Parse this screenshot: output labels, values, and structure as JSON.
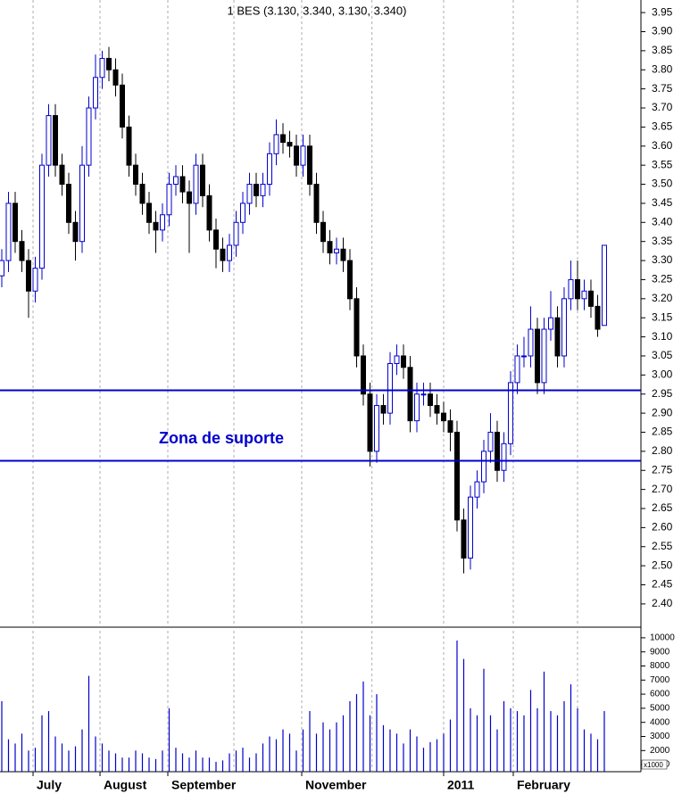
{
  "chart_data": [
    {
      "type": "candlestick",
      "title": "1 BES (3.130, 3.340, 3.130, 3.340)",
      "annotation": "Zona de suporte",
      "up_color": "#0000cc",
      "down_color": "#000000",
      "hlines": [
        2.96,
        2.775
      ],
      "hline_color": "#0000cc",
      "xlim": [
        -0.267,
        95.47
      ],
      "xgrid": [
        4.67,
        14.67,
        24.8,
        34.67,
        44.8,
        55.3,
        66,
        76.4,
        86
      ],
      "ylim": [
        2.346,
        3.983
      ],
      "yticks": [
        {
          "value": 2.4,
          "label": "2.40"
        },
        {
          "value": 2.45,
          "label": "2.45"
        },
        {
          "value": 2.5,
          "label": "2.50"
        },
        {
          "value": 2.55,
          "label": "2.55"
        },
        {
          "value": 2.6,
          "label": "2.60"
        },
        {
          "value": 2.65,
          "label": "2.65"
        },
        {
          "value": 2.7,
          "label": "2.70"
        },
        {
          "value": 2.75,
          "label": "2.75"
        },
        {
          "value": 2.8,
          "label": "2.80"
        },
        {
          "value": 2.85,
          "label": "2.85"
        },
        {
          "value": 2.9,
          "label": "2.90"
        },
        {
          "value": 2.95,
          "label": "2.95"
        },
        {
          "value": 3.0,
          "label": "3.00"
        },
        {
          "value": 3.05,
          "label": "3.05"
        },
        {
          "value": 3.1,
          "label": "3.10"
        },
        {
          "value": 3.15,
          "label": "3.15"
        },
        {
          "value": 3.2,
          "label": "3.20"
        },
        {
          "value": 3.25,
          "label": "3.25"
        },
        {
          "value": 3.3,
          "label": "3.30"
        },
        {
          "value": 3.35,
          "label": "3.35"
        },
        {
          "value": 3.4,
          "label": "3.40"
        },
        {
          "value": 3.45,
          "label": "3.45"
        },
        {
          "value": 3.5,
          "label": "3.50"
        },
        {
          "value": 3.55,
          "label": "3.55"
        },
        {
          "value": 3.6,
          "label": "3.60"
        },
        {
          "value": 3.65,
          "label": "3.65"
        },
        {
          "value": 3.7,
          "label": "3.70"
        },
        {
          "value": 3.75,
          "label": "3.75"
        },
        {
          "value": 3.8,
          "label": "3.80"
        },
        {
          "value": 3.85,
          "label": "3.85"
        },
        {
          "value": 3.9,
          "label": "3.90"
        },
        {
          "value": 3.95,
          "label": "3.95"
        }
      ],
      "open": [
        3.26,
        3.3,
        3.45,
        3.35,
        3.3,
        3.22,
        3.28,
        3.55,
        3.68,
        3.55,
        3.5,
        3.4,
        3.35,
        3.55,
        3.7,
        3.78,
        3.83,
        3.8,
        3.76,
        3.65,
        3.55,
        3.5,
        3.45,
        3.4,
        3.38,
        3.42,
        3.5,
        3.52,
        3.48,
        3.45,
        3.55,
        3.47,
        3.38,
        3.33,
        3.3,
        3.34,
        3.4,
        3.45,
        3.5,
        3.47,
        3.5,
        3.58,
        3.63,
        3.61,
        3.6,
        3.55,
        3.6,
        3.5,
        3.4,
        3.35,
        3.32,
        3.33,
        3.3,
        3.2,
        3.05,
        2.95,
        2.8,
        2.92,
        2.9,
        3.03,
        3.05,
        3.02,
        2.88,
        2.95,
        2.95,
        2.92,
        2.9,
        2.88,
        2.85,
        2.62,
        2.52,
        2.68,
        2.72,
        2.8,
        2.85,
        2.75,
        2.82,
        2.98,
        3.05,
        3.05,
        3.12,
        2.98,
        3.12,
        3.15,
        3.05,
        3.2,
        3.25,
        3.2,
        3.22,
        3.18,
        3.13
      ],
      "high": [
        3.33,
        3.48,
        3.48,
        3.38,
        3.33,
        3.31,
        3.58,
        3.71,
        3.71,
        3.58,
        3.53,
        3.43,
        3.6,
        3.73,
        3.84,
        3.85,
        3.86,
        3.83,
        3.79,
        3.68,
        3.58,
        3.53,
        3.48,
        3.43,
        3.45,
        3.53,
        3.55,
        3.55,
        3.51,
        3.58,
        3.58,
        3.5,
        3.41,
        3.36,
        3.37,
        3.43,
        3.48,
        3.53,
        3.53,
        3.53,
        3.61,
        3.67,
        3.66,
        3.64,
        3.63,
        3.63,
        3.63,
        3.53,
        3.43,
        3.38,
        3.36,
        3.36,
        3.33,
        3.23,
        3.08,
        2.98,
        2.95,
        2.95,
        3.06,
        3.08,
        3.08,
        3.05,
        2.98,
        2.98,
        2.98,
        2.95,
        2.93,
        2.91,
        2.88,
        2.65,
        2.71,
        2.75,
        2.83,
        2.9,
        2.88,
        2.85,
        3.01,
        3.08,
        3.1,
        3.18,
        3.15,
        3.15,
        3.22,
        3.18,
        3.23,
        3.3,
        3.3,
        3.25,
        3.25,
        3.21,
        3.34
      ],
      "low": [
        3.23,
        3.27,
        3.32,
        3.27,
        3.15,
        3.19,
        3.25,
        3.52,
        3.52,
        3.47,
        3.37,
        3.3,
        3.32,
        3.52,
        3.67,
        3.75,
        3.77,
        3.73,
        3.62,
        3.52,
        3.47,
        3.42,
        3.37,
        3.32,
        3.35,
        3.39,
        3.47,
        3.45,
        3.32,
        3.42,
        3.44,
        3.35,
        3.28,
        3.27,
        3.27,
        3.31,
        3.37,
        3.42,
        3.44,
        3.44,
        3.47,
        3.55,
        3.58,
        3.57,
        3.52,
        3.52,
        3.47,
        3.37,
        3.32,
        3.29,
        3.29,
        3.27,
        3.17,
        3.02,
        2.92,
        2.76,
        2.77,
        2.87,
        2.87,
        3.0,
        2.99,
        2.85,
        2.85,
        2.92,
        2.89,
        2.87,
        2.85,
        2.8,
        2.59,
        2.48,
        2.49,
        2.65,
        2.69,
        2.77,
        2.72,
        2.72,
        2.79,
        2.95,
        3.02,
        3.02,
        2.95,
        2.95,
        3.09,
        3.02,
        3.02,
        3.17,
        3.17,
        3.17,
        3.15,
        3.1,
        3.13
      ],
      "close": [
        3.3,
        3.45,
        3.35,
        3.3,
        3.22,
        3.28,
        3.55,
        3.68,
        3.55,
        3.5,
        3.4,
        3.35,
        3.55,
        3.7,
        3.78,
        3.83,
        3.8,
        3.76,
        3.65,
        3.55,
        3.5,
        3.45,
        3.4,
        3.38,
        3.42,
        3.5,
        3.52,
        3.48,
        3.45,
        3.55,
        3.47,
        3.38,
        3.33,
        3.3,
        3.34,
        3.4,
        3.45,
        3.5,
        3.47,
        3.5,
        3.58,
        3.63,
        3.61,
        3.6,
        3.55,
        3.6,
        3.5,
        3.4,
        3.35,
        3.32,
        3.33,
        3.3,
        3.2,
        3.05,
        2.95,
        2.8,
        2.92,
        2.9,
        3.03,
        3.05,
        3.02,
        2.88,
        2.95,
        2.95,
        2.92,
        2.9,
        2.88,
        2.85,
        2.62,
        2.52,
        2.68,
        2.72,
        2.8,
        2.85,
        2.75,
        2.82,
        2.98,
        3.05,
        3.05,
        3.12,
        2.98,
        3.12,
        3.15,
        3.05,
        3.2,
        3.25,
        3.2,
        3.22,
        3.18,
        3.12,
        3.34
      ]
    },
    {
      "type": "bar",
      "color": "#0000cc",
      "unit_note": "x1000",
      "xlim": [
        -0.267,
        95.47
      ],
      "xgrid": [
        4.67,
        14.67,
        24.8,
        34.67,
        44.8,
        55.3,
        66,
        76.4,
        86
      ],
      "xticks": [
        {
          "value": 4.67,
          "label": "July"
        },
        {
          "value": 14.67,
          "label": "August"
        },
        {
          "value": 24.8,
          "label": "September"
        },
        {
          "value": 44.8,
          "label": "November"
        },
        {
          "value": 66,
          "label": "2011"
        },
        {
          "value": 76.4,
          "label": "February"
        }
      ],
      "ylim": [
        500,
        10500
      ],
      "yticks": [
        1000,
        2000,
        3000,
        4000,
        5000,
        6000,
        7000,
        8000,
        9000,
        10000
      ],
      "values": [
        5500,
        2800,
        2500,
        3200,
        2000,
        2200,
        4500,
        4800,
        3000,
        2500,
        2000,
        2300,
        3500,
        7300,
        3000,
        2500,
        2000,
        1800,
        1500,
        1500,
        2000,
        1800,
        1500,
        1400,
        2000,
        5000,
        2200,
        1800,
        1500,
        2000,
        1500,
        1500,
        1200,
        1300,
        1800,
        2000,
        2200,
        1500,
        1800,
        2500,
        3000,
        2800,
        3500,
        3200,
        2000,
        3500,
        4800,
        3200,
        4000,
        3500,
        4000,
        4500,
        5500,
        6000,
        6900,
        4500,
        6000,
        3800,
        3500,
        3200,
        2500,
        3500,
        3000,
        2200,
        2600,
        2800,
        3200,
        4200,
        9800,
        8500,
        5000,
        4500,
        7800,
        4500,
        3500,
        5500,
        5000,
        4800,
        4500,
        6300,
        5000,
        7600,
        4800,
        4500,
        5500,
        6700,
        5000,
        3500,
        3200,
        2800,
        4800
      ]
    }
  ]
}
